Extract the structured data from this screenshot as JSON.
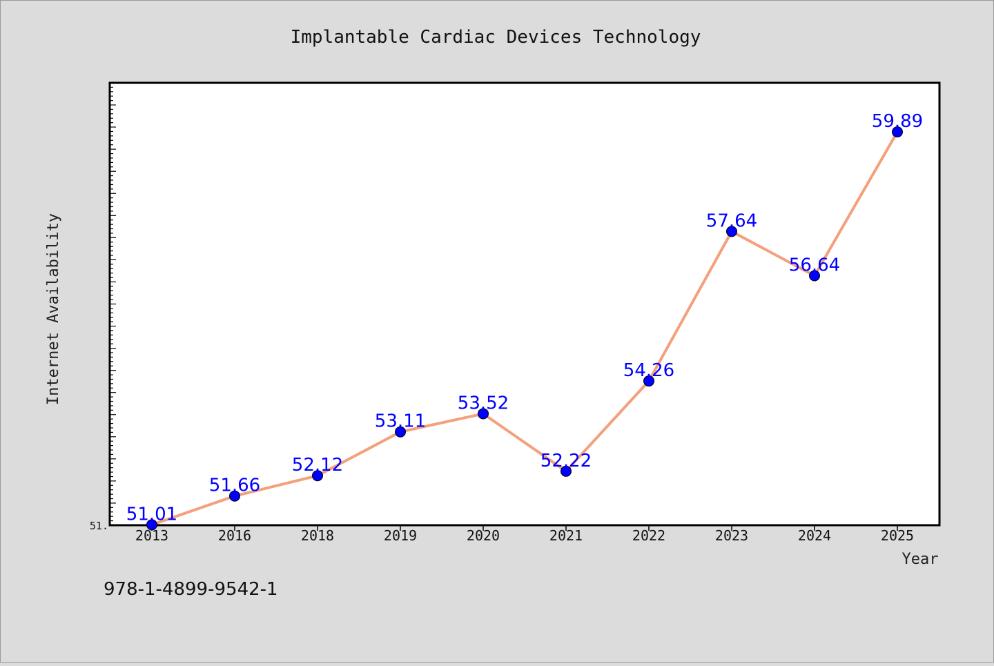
{
  "chart_data": {
    "type": "line",
    "title": "Implantable Cardiac Devices Technology",
    "xlabel": "Year",
    "ylabel": "Internet Availability",
    "categories": [
      "2013",
      "2016",
      "2018",
      "2019",
      "2020",
      "2021",
      "2022",
      "2023",
      "2024",
      "2025"
    ],
    "series": [
      {
        "values": [
          51.01,
          51.66,
          52.12,
          53.11,
          53.52,
          52.22,
          54.26,
          57.64,
          56.64,
          59.89
        ],
        "labels": [
          "51.01",
          "51.66",
          "52.12",
          "53.11",
          "53.52",
          "52.22",
          "54.26",
          "57.64",
          "56.64",
          "59.89"
        ]
      }
    ],
    "ylim": [
      51.0,
      61.0
    ],
    "ytick_labels": [
      "51."
    ],
    "grid": false,
    "legend": "none",
    "colors": {
      "line": "#f4a07d",
      "marker": "#0000ff",
      "data_label": "#0000ff",
      "background": "#dcdcdc",
      "plot_background": "#ffffff"
    }
  },
  "footer": {
    "identifier": "978-1-4899-9542-1"
  }
}
